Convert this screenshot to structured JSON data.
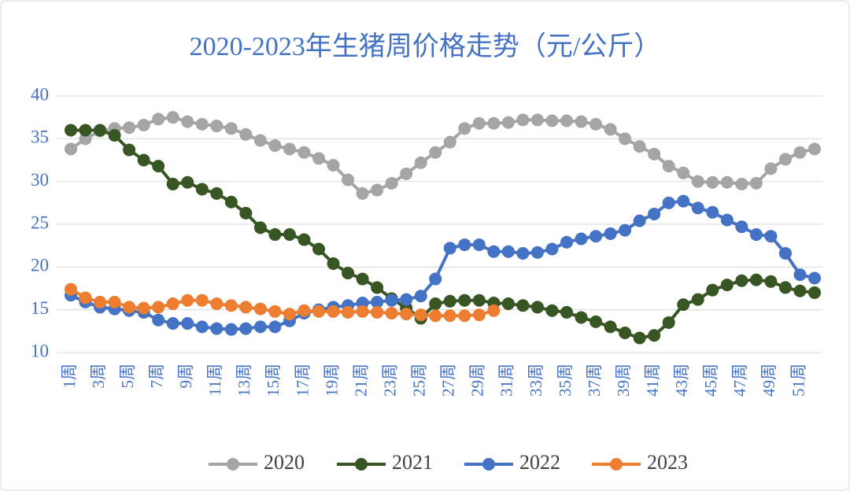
{
  "chart_data": {
    "type": "line",
    "title": "2020-2023年生猪周价格走势（元/公斤）",
    "categories": [
      "1周",
      null,
      "3周",
      null,
      "5周",
      null,
      "7周",
      null,
      "9周",
      null,
      "11周",
      null,
      "13周",
      null,
      "15周",
      null,
      "17周",
      null,
      "19周",
      null,
      "21周",
      null,
      "23周",
      null,
      "25周",
      null,
      "27周",
      null,
      "29周",
      null,
      "31周",
      null,
      "33周",
      null,
      "35周",
      null,
      "37周",
      null,
      "39周",
      null,
      "41周",
      null,
      "43周",
      null,
      "45周",
      null,
      "47周",
      null,
      "49周",
      null,
      "51周",
      null
    ],
    "series": [
      {
        "name": "2020",
        "color": "#a5a5a5",
        "values": [
          33.8,
          35.0,
          35.9,
          36.2,
          36.3,
          36.6,
          37.3,
          37.5,
          37.0,
          36.7,
          36.5,
          36.2,
          35.5,
          34.8,
          34.2,
          33.8,
          33.4,
          32.7,
          31.9,
          30.2,
          28.6,
          29.0,
          29.8,
          30.9,
          32.2,
          33.4,
          34.6,
          36.2,
          36.8,
          36.8,
          36.9,
          37.2,
          37.2,
          37.1,
          37.1,
          37.0,
          36.7,
          36.1,
          35.0,
          34.1,
          33.2,
          31.8,
          31.0,
          30.0,
          29.9,
          29.9,
          29.7,
          29.8,
          31.5,
          32.6,
          33.4,
          33.8
        ]
      },
      {
        "name": "2021",
        "color": "#375623",
        "values": [
          36.0,
          36.0,
          36.0,
          35.4,
          33.7,
          32.5,
          31.8,
          29.7,
          29.9,
          29.1,
          28.6,
          27.6,
          26.3,
          24.6,
          23.8,
          23.8,
          23.2,
          22.1,
          20.4,
          19.3,
          18.6,
          17.6,
          16.3,
          15.2,
          14.0,
          15.7,
          16.0,
          16.1,
          16.1,
          15.8,
          15.7,
          15.5,
          15.3,
          14.9,
          14.7,
          14.1,
          13.6,
          13.0,
          12.3,
          11.7,
          12.0,
          13.5,
          15.6,
          16.2,
          17.3,
          17.9,
          18.4,
          18.5,
          18.3,
          17.6,
          17.2,
          17.0
        ]
      },
      {
        "name": "2022",
        "color": "#4472c4",
        "values": [
          16.7,
          15.9,
          15.3,
          15.1,
          14.9,
          14.7,
          13.8,
          13.4,
          13.4,
          13.0,
          12.8,
          12.7,
          12.8,
          13.0,
          13.0,
          13.7,
          14.6,
          15.0,
          15.3,
          15.5,
          15.8,
          15.9,
          16.1,
          16.2,
          16.6,
          18.6,
          22.2,
          22.6,
          22.6,
          21.8,
          21.8,
          21.6,
          21.7,
          22.1,
          22.9,
          23.3,
          23.6,
          23.9,
          24.3,
          25.4,
          26.2,
          27.5,
          27.7,
          26.9,
          26.4,
          25.5,
          24.7,
          23.8,
          23.6,
          21.6,
          19.1,
          18.7
        ]
      },
      {
        "name": "2023",
        "color": "#ed7d31",
        "values": [
          17.4,
          16.4,
          15.9,
          15.9,
          15.3,
          15.2,
          15.3,
          15.7,
          16.1,
          16.1,
          15.7,
          15.5,
          15.3,
          15.1,
          14.8,
          14.5,
          14.9,
          14.8,
          14.8,
          14.7,
          14.8,
          14.7,
          14.6,
          14.5,
          14.4,
          14.3,
          14.3,
          14.3,
          14.4,
          14.9,
          null,
          null,
          null,
          null,
          null,
          null,
          null,
          null,
          null,
          null,
          null,
          null,
          null,
          null,
          null,
          null,
          null,
          null,
          null,
          null,
          null,
          null
        ]
      }
    ],
    "ylim": [
      10,
      40
    ],
    "yticks": [
      10,
      15,
      20,
      25,
      30,
      35,
      40
    ],
    "grid": true,
    "legend": "bottom"
  }
}
